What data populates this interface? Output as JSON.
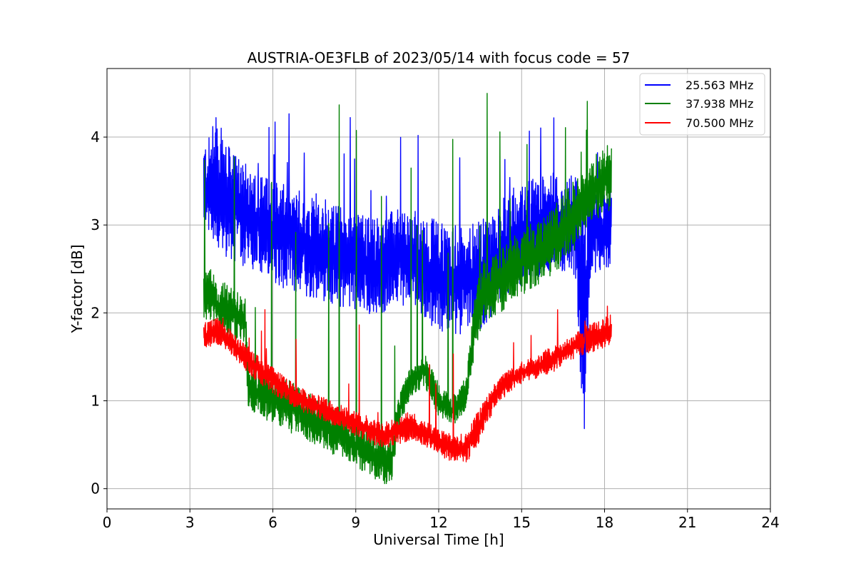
{
  "chart_data": {
    "type": "line",
    "title": "AUSTRIA-OE3FLB of 2023/05/14 with focus code = 57",
    "xlabel": "Universal Time [h]",
    "ylabel": "Y-factor [dB]",
    "xlim": [
      0,
      24
    ],
    "ylim": [
      -0.23,
      4.78
    ],
    "x_ticks": [
      0,
      3,
      6,
      9,
      12,
      15,
      18,
      21,
      24
    ],
    "x_tick_labels": [
      "0",
      "3",
      "6",
      "9",
      "12",
      "15",
      "18",
      "21",
      "24"
    ],
    "y_ticks": [
      0,
      1,
      2,
      3,
      4
    ],
    "y_tick_labels": [
      "0",
      "1",
      "2",
      "3",
      "4"
    ],
    "grid": true,
    "legend_position": "top-right",
    "series": [
      {
        "name": "25.563 MHz",
        "color": "#0000ff",
        "x": [
          3.5,
          4.0,
          4.5,
          5.0,
          5.5,
          6.0,
          6.5,
          7.0,
          7.5,
          8.0,
          8.5,
          9.0,
          9.5,
          10.0,
          10.5,
          11.0,
          11.5,
          12.0,
          12.5,
          13.0,
          13.5,
          14.0,
          14.5,
          15.0,
          15.5,
          16.0,
          16.5,
          17.0,
          17.2,
          17.5,
          18.0,
          18.25
        ],
        "low": [
          2.75,
          2.7,
          2.6,
          2.5,
          2.45,
          2.35,
          2.25,
          2.2,
          2.15,
          2.1,
          2.05,
          2.0,
          1.95,
          2.0,
          2.1,
          2.05,
          1.9,
          1.8,
          1.75,
          1.75,
          1.8,
          2.0,
          2.2,
          2.3,
          2.4,
          2.45,
          2.45,
          2.3,
          0.0,
          2.4,
          2.4,
          2.5
        ],
        "high": [
          3.95,
          4.1,
          3.85,
          3.7,
          3.6,
          3.5,
          3.45,
          3.4,
          3.35,
          3.3,
          3.2,
          3.15,
          3.1,
          3.1,
          3.2,
          3.15,
          3.1,
          3.05,
          3.0,
          3.0,
          3.05,
          3.15,
          3.3,
          3.45,
          3.55,
          3.6,
          3.6,
          3.55,
          3.6,
          3.5,
          3.4,
          3.6
        ],
        "spike_max": 4.3,
        "spike_min": 0.0
      },
      {
        "name": "37.938 MHz",
        "color": "#008000",
        "x": [
          3.5,
          4.0,
          4.5,
          5.0,
          5.1,
          5.5,
          6.0,
          6.5,
          7.0,
          7.5,
          8.0,
          8.5,
          9.0,
          9.5,
          10.0,
          10.3,
          10.6,
          11.0,
          11.5,
          12.0,
          12.5,
          13.0,
          13.3,
          13.6,
          14.0,
          14.5,
          15.0,
          15.5,
          16.0,
          16.5,
          17.0,
          17.5,
          18.0,
          18.25
        ],
        "low": [
          1.95,
          1.75,
          1.7,
          1.65,
          0.9,
          0.8,
          0.75,
          0.65,
          0.6,
          0.5,
          0.4,
          0.35,
          0.25,
          0.15,
          0.05,
          0.05,
          0.75,
          1.05,
          1.15,
          0.8,
          0.7,
          0.9,
          1.5,
          1.9,
          1.95,
          2.05,
          2.2,
          2.3,
          2.4,
          2.55,
          2.75,
          3.05,
          3.1,
          3.2
        ],
        "high": [
          2.6,
          2.4,
          2.3,
          2.2,
          1.5,
          1.35,
          1.3,
          1.25,
          1.15,
          1.05,
          0.95,
          0.85,
          0.75,
          0.65,
          0.6,
          0.65,
          1.1,
          1.4,
          1.55,
          1.2,
          1.05,
          1.3,
          2.2,
          2.6,
          2.65,
          2.8,
          2.95,
          3.05,
          3.15,
          3.35,
          3.55,
          3.75,
          3.9,
          3.95
        ],
        "spike_max": 4.55,
        "spike_min": 0.0
      },
      {
        "name": "70.500 MHz",
        "color": "#ff0000",
        "x": [
          3.5,
          4.0,
          4.5,
          5.0,
          5.5,
          6.0,
          6.5,
          7.0,
          7.5,
          8.0,
          8.5,
          9.0,
          9.5,
          10.0,
          10.5,
          11.0,
          11.5,
          12.0,
          12.5,
          13.0,
          13.5,
          14.0,
          14.5,
          15.0,
          15.5,
          16.0,
          16.5,
          17.0,
          17.5,
          18.0,
          18.25
        ],
        "low": [
          1.58,
          1.62,
          1.52,
          1.35,
          1.2,
          1.08,
          0.98,
          0.88,
          0.82,
          0.75,
          0.68,
          0.6,
          0.52,
          0.45,
          0.5,
          0.55,
          0.48,
          0.38,
          0.3,
          0.28,
          0.55,
          0.9,
          1.08,
          1.2,
          1.25,
          1.3,
          1.4,
          1.5,
          1.55,
          1.6,
          1.65
        ],
        "high": [
          1.9,
          1.95,
          1.8,
          1.65,
          1.5,
          1.38,
          1.25,
          1.15,
          1.08,
          1.02,
          0.95,
          0.88,
          0.82,
          0.75,
          0.82,
          0.88,
          0.78,
          0.68,
          0.62,
          0.62,
          0.95,
          1.2,
          1.35,
          1.45,
          1.52,
          1.6,
          1.68,
          1.78,
          1.88,
          1.95,
          2.0
        ],
        "spike_max": 2.08,
        "spike_min": 0.0
      }
    ]
  }
}
